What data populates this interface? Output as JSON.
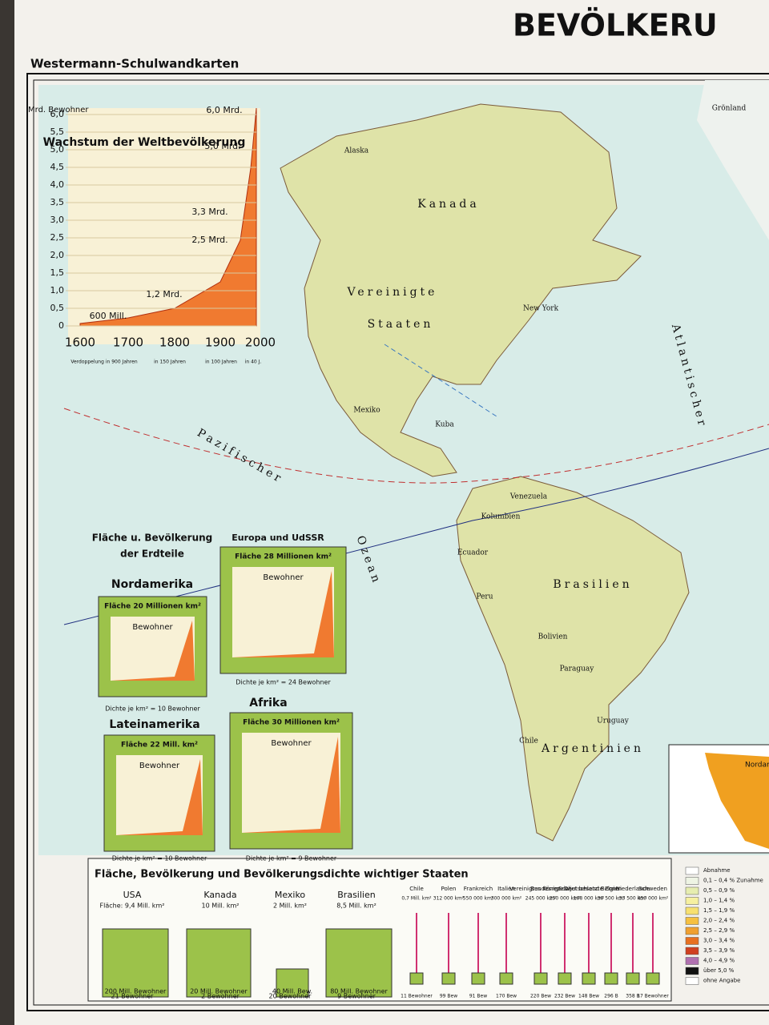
{
  "header": {
    "title": "BEVÖLKERU",
    "publisher": "Westermann-Schulwandkarten"
  },
  "growth_chart": {
    "title": "Wachstum der Weltbevölkerung",
    "unit": "Mrd. Bewohner",
    "yticks": [
      "0",
      "0,5",
      "1,0",
      "1,5",
      "2,0",
      "2,5",
      "3,0",
      "3,5",
      "4,0",
      "4,5",
      "5,0",
      "5,5",
      "6,0"
    ],
    "xticks": [
      "1600",
      "1700",
      "1800",
      "1900",
      "2000"
    ],
    "milestones": [
      "600 Mill.",
      "1,2 Mrd.",
      "2,5 Mrd.",
      "3,3 Mrd.",
      "5,0 Mrd.",
      "6,0 Mrd."
    ],
    "periods": [
      "Verdoppelung in 900 Jahren",
      "in 150 Jahren",
      "in 100 Jahren",
      "in 40 J."
    ]
  },
  "map_labels": [
    "Alaska",
    "Kanada",
    "Grönland",
    "Vereinigte",
    "Staaten",
    "New York",
    "Mexiko",
    "Kuba",
    "Pazifischer",
    "Ozean",
    "Atlantischer",
    "Venezuela",
    "Kolumbien",
    "Ecuador",
    "Peru",
    "Brasilien",
    "Bolivien",
    "Paraguay",
    "Chile",
    "Uruguay",
    "Argentinien"
  ],
  "continents": {
    "heading": [
      "Fläche u. Bevölkerung",
      "der Erdteile"
    ],
    "caption": "Bewohner",
    "panels": [
      {
        "name": "Nordamerika",
        "area": "Fläche 20 Millionen km²",
        "density": "Dichte je km² = 10 Bewohner"
      },
      {
        "name": "Europa und UdSSR",
        "area": "Fläche 28 Millionen km²",
        "density": "Dichte je km² = 24 Bewohner"
      },
      {
        "name": "Lateinamerika",
        "area": "Fläche 22 Mill. km²",
        "density": "Dichte je km² = 10 Bewohner"
      },
      {
        "name": "Afrika",
        "area": "Fläche 30 Millionen km²",
        "density": "Dichte je km² = 9 Bewohner"
      }
    ]
  },
  "states": {
    "heading": "Fläche, Bevölkerung und Bevölkerungsdichte wichtiger Staaten",
    "items": [
      {
        "name": "USA",
        "area": "Fläche: 9,4 Mill. km²",
        "population": "200 Mill. Bewohner",
        "density": "21 Bewohner"
      },
      {
        "name": "Kanada",
        "area": "10 Mill. km²",
        "population": "20 Mill. Bewohner",
        "density": "2 Bewohner"
      },
      {
        "name": "Mexiko",
        "area": "2 Mill. km²",
        "population": "40 Mill. Bew.",
        "density": "20 Bewohner"
      },
      {
        "name": "Brasilien",
        "area": "8,5 Mill. km²",
        "population": "80 Mill. Bewohner",
        "density": "9 Bewohner"
      },
      {
        "name": "Chile",
        "area": "0,7 Mill. km²",
        "density": "11 Bewohner"
      },
      {
        "name": "Polen",
        "area": "312 000 km²",
        "density": "99 Bew"
      },
      {
        "name": "Frankreich",
        "area": "550 000 km²",
        "density": "91 Bew"
      },
      {
        "name": "Italien",
        "area": "300 000 km²",
        "density": "170 Bew"
      },
      {
        "name": "Vereinigtes Königreich",
        "area": "245 000 km²",
        "density": "220 Bew"
      },
      {
        "name": "Bundesrep. Deutschland",
        "area": "250 000 km²",
        "density": "232 Bew"
      },
      {
        "name": "Sowjet besetzte Zone",
        "area": "108 000 km²",
        "density": "148 Bew"
      },
      {
        "name": "Belgien",
        "area": "30 500 km²",
        "density": "296 B"
      },
      {
        "name": "Niederlande",
        "area": "33 500 km²",
        "density": "358 B"
      },
      {
        "name": "Schweden",
        "area": "450 000 km²",
        "density": "17 Bewohner"
      }
    ]
  },
  "inset": {
    "label": "Nordamerika"
  },
  "legend": {
    "items": [
      "Abnahme",
      "0,1 – 0,4 % Zunahme",
      "0,5 – 0,9 %",
      "1,0 – 1,4 %",
      "1,5 – 1,9 %",
      "2,0 – 2,4 %",
      "2,5 – 2,9 %",
      "3,0 – 3,4 %",
      "3,5 – 3,9 %",
      "4,0 – 4,9 %",
      "über 5,0 %",
      "ohne Angabe"
    ]
  }
}
